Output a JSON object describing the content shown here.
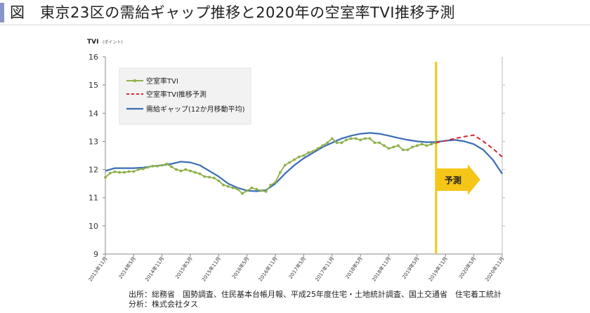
{
  "title": "図　東京23区の需給ギャップ推移と2020年の空室率TVI推移予測",
  "footer": {
    "source": "出所：総務省　国勢調査、住民基本台帳月報、平成25年度住宅・土地統計調査、国土交通省　住宅着工統計",
    "analysis": "分析：株式会社タス"
  },
  "chart_data": {
    "type": "line",
    "ylabel": "TVI",
    "yunit": "(ポイント)",
    "ylim": [
      9,
      16
    ],
    "yticks": [
      9,
      10,
      11,
      12,
      13,
      14,
      15,
      16
    ],
    "grid": false,
    "legend_position": "top-left",
    "x_range": [
      "2013年11月",
      "2020年11月"
    ],
    "xticks": [
      "2013年11月",
      "2014年5月",
      "2014年11月",
      "2015年5月",
      "2015年11月",
      "2016年5月",
      "2016年11月",
      "2017年5月",
      "2017年11月",
      "2018年5月",
      "2018年11月",
      "2019年5月",
      "2019年11月",
      "2020年5月",
      "2020年11月"
    ],
    "forecast_start": "2019年9月",
    "forecast_label": "予測",
    "colors": {
      "vacancy": "#8fb04a",
      "forecast": "#d8262b",
      "gap": "#3a6db5",
      "forecast_line": "#f5c518",
      "forecast_arrow": "#f5c518"
    },
    "series": [
      {
        "name": "空室率TVI",
        "style": "line-markers",
        "x": [
          "2013年11月",
          "2013年12月",
          "2014年1月",
          "2014年2月",
          "2014年3月",
          "2014年4月",
          "2014年5月",
          "2014年6月",
          "2014年7月",
          "2014年8月",
          "2014年9月",
          "2014年10月",
          "2014年11月",
          "2014年12月",
          "2015年1月",
          "2015年2月",
          "2015年3月",
          "2015年4月",
          "2015年5月",
          "2015年6月",
          "2015年7月",
          "2015年8月",
          "2015年9月",
          "2015年10月",
          "2015年11月",
          "2015年12月",
          "2016年1月",
          "2016年2月",
          "2016年3月",
          "2016年4月",
          "2016年5月",
          "2016年6月",
          "2016年7月",
          "2016年8月",
          "2016年9月",
          "2016年10月",
          "2016年11月",
          "2016年12月",
          "2017年1月",
          "2017年2月",
          "2017年3月",
          "2017年4月",
          "2017年5月",
          "2017年6月",
          "2017年7月",
          "2017年8月",
          "2017年9月",
          "2017年10月",
          "2017年11月",
          "2017年12月",
          "2018年1月",
          "2018年2月",
          "2018年3月",
          "2018年4月",
          "2018年5月",
          "2018年6月",
          "2018年7月",
          "2018年8月",
          "2018年9月",
          "2018年10月",
          "2018年11月",
          "2018年12月",
          "2019年1月",
          "2019年2月",
          "2019年3月",
          "2019年4月",
          "2019年5月",
          "2019年6月",
          "2019年7月",
          "2019年8月",
          "2019年9月"
        ],
        "values": [
          11.72,
          11.87,
          11.92,
          11.9,
          11.9,
          11.93,
          11.93,
          12.0,
          12.02,
          12.08,
          12.12,
          12.12,
          12.15,
          12.2,
          12.1,
          12.0,
          11.95,
          12.0,
          11.95,
          11.9,
          11.85,
          11.75,
          11.73,
          11.7,
          11.6,
          11.45,
          11.4,
          11.35,
          11.3,
          11.15,
          11.25,
          11.35,
          11.3,
          11.25,
          11.22,
          11.45,
          11.55,
          11.9,
          12.15,
          12.25,
          12.35,
          12.45,
          12.5,
          12.6,
          12.65,
          12.75,
          12.85,
          12.95,
          13.1,
          12.95,
          12.95,
          13.05,
          13.1,
          13.1,
          13.05,
          13.1,
          13.1,
          12.95,
          12.95,
          12.85,
          12.75,
          12.8,
          12.85,
          12.7,
          12.7,
          12.8,
          12.85,
          12.9,
          12.85,
          12.9,
          12.95
        ]
      },
      {
        "name": "空室率TVI推移予測",
        "style": "dashed",
        "x": [
          "2019年9月",
          "2019年11月",
          "2020年1月",
          "2020年3月",
          "2020年5月",
          "2020年7月",
          "2020年9月",
          "2020年11月"
        ],
        "values": [
          12.95,
          13.02,
          13.1,
          13.17,
          13.22,
          13.0,
          12.75,
          12.45
        ]
      },
      {
        "name": "需給ギャップ(12か月移動平均)",
        "style": "solid",
        "x": [
          "2013年11月",
          "2014年1月",
          "2014年3月",
          "2014年5月",
          "2014年7月",
          "2014年9月",
          "2014年11月",
          "2015年1月",
          "2015年3月",
          "2015年5月",
          "2015年7月",
          "2015年9月",
          "2015年11月",
          "2016年1月",
          "2016年3月",
          "2016年5月",
          "2016年7月",
          "2016年9月",
          "2016年11月",
          "2017年1月",
          "2017年3月",
          "2017年5月",
          "2017年7月",
          "2017年9月",
          "2017年11月",
          "2018年1月",
          "2018年3月",
          "2018年5月",
          "2018年7月",
          "2018年9月",
          "2018年11月",
          "2019年1月",
          "2019年3月",
          "2019年5月",
          "2019年7月",
          "2019年9月",
          "2019年11月",
          "2020年1月",
          "2020年3月",
          "2020年5月",
          "2020年7月",
          "2020年9月",
          "2020年11月"
        ],
        "values": [
          11.95,
          12.05,
          12.05,
          12.05,
          12.07,
          12.12,
          12.15,
          12.2,
          12.28,
          12.25,
          12.15,
          11.95,
          11.75,
          11.5,
          11.35,
          11.25,
          11.23,
          11.27,
          11.5,
          11.85,
          12.15,
          12.4,
          12.6,
          12.8,
          12.95,
          13.1,
          13.2,
          13.27,
          13.3,
          13.27,
          13.2,
          13.12,
          13.05,
          13.0,
          12.97,
          12.98,
          13.02,
          13.05,
          13.0,
          12.9,
          12.7,
          12.35,
          11.85
        ]
      }
    ]
  }
}
